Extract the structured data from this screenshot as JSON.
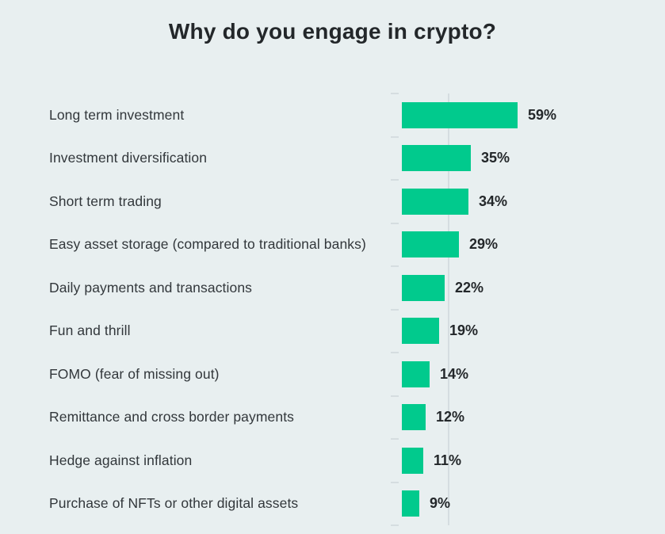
{
  "page": {
    "background_color": "#e8eff0",
    "text_color": "#32373b",
    "axis_color": "#d5dde0"
  },
  "chart_data": {
    "type": "bar",
    "orientation": "horizontal",
    "title": "Why do you engage in crypto?",
    "categories": [
      "Long term investment",
      "Investment diversification",
      "Short term trading",
      "Easy asset storage (compared to traditional banks)",
      "Daily payments and transactions",
      "Fun and thrill",
      "FOMO (fear of missing out)",
      "Remittance and cross border payments",
      "Hedge against inflation",
      "Purchase of NFTs or other digital assets"
    ],
    "values": [
      59,
      35,
      34,
      29,
      22,
      19,
      14,
      12,
      11,
      9
    ],
    "value_labels": [
      "59%",
      "35%",
      "34%",
      "29%",
      "22%",
      "19%",
      "14%",
      "12%",
      "11%",
      "9%"
    ],
    "unit": "%",
    "xlim": [
      0,
      62
    ],
    "bar_color": "#01ca8d",
    "grid": false,
    "legend": "none"
  }
}
